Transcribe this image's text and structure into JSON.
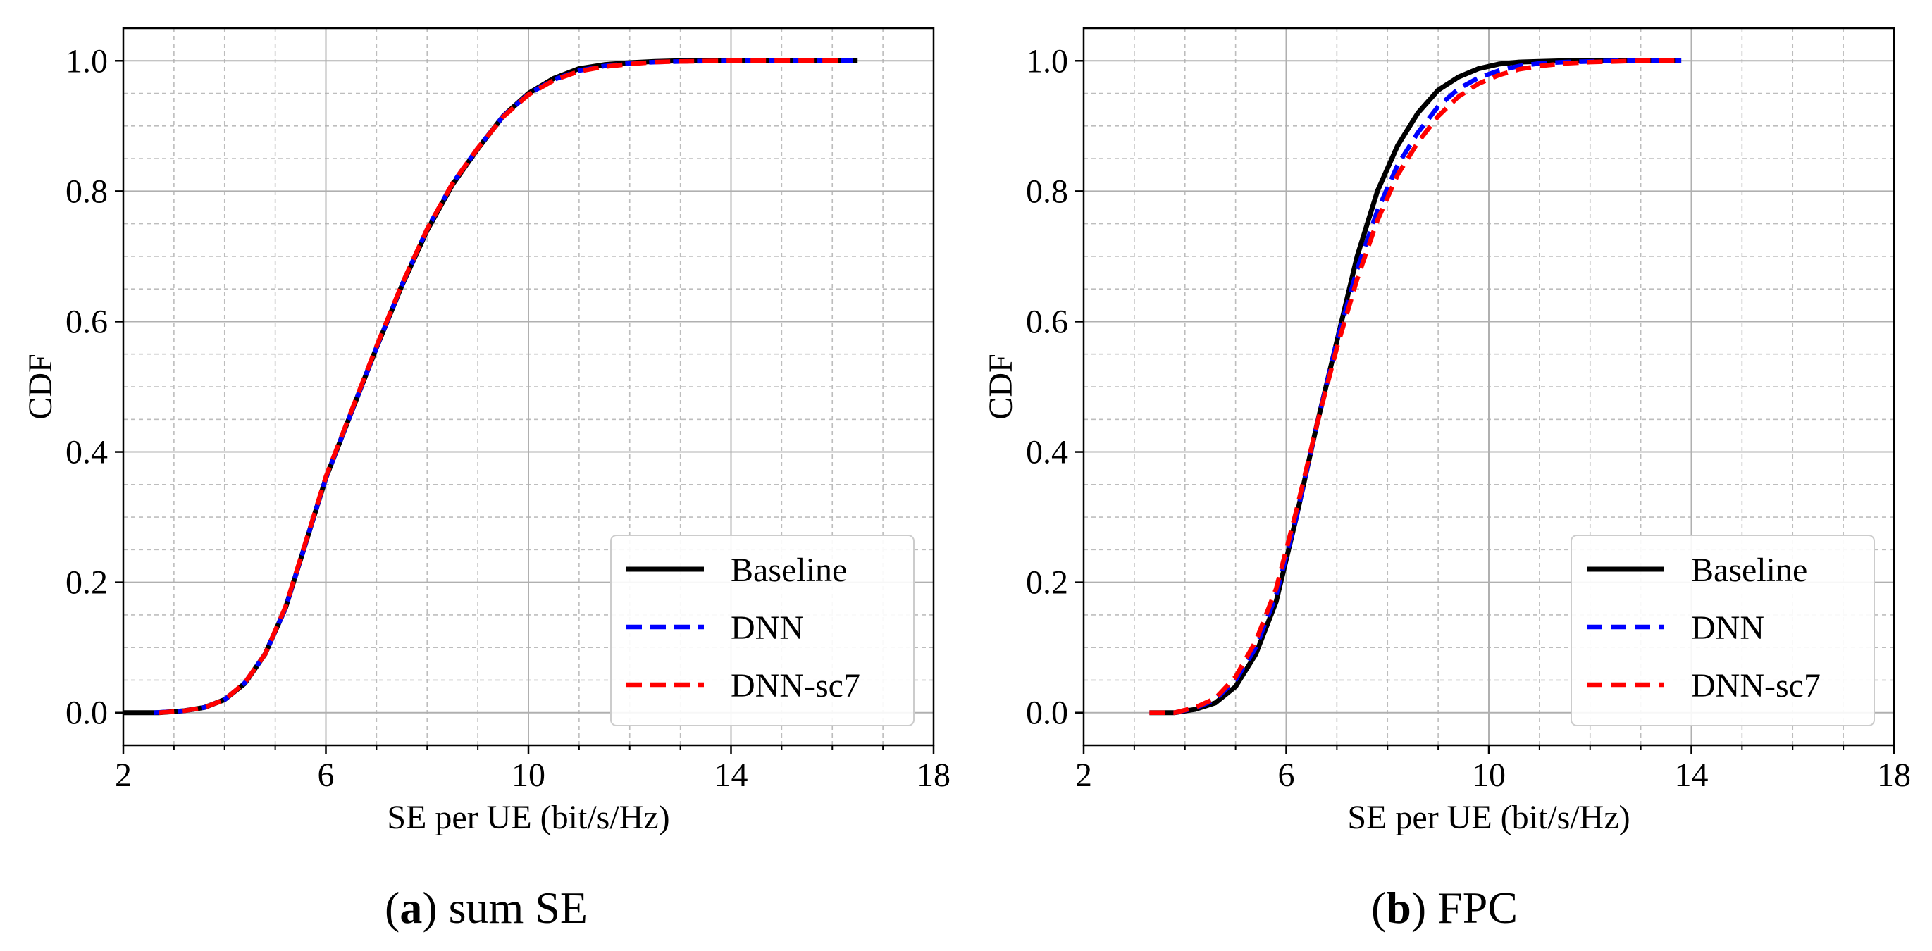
{
  "chart_data": [
    {
      "type": "line",
      "caption_letter": "a",
      "caption_text": "sum SE",
      "xlabel": "SE per UE (bit/s/Hz)",
      "ylabel": "CDF",
      "xlim": [
        2,
        18
      ],
      "ylim": [
        -0.05,
        1.05
      ],
      "xticks": [
        2,
        6,
        10,
        14,
        18
      ],
      "yticks": [
        0.0,
        0.2,
        0.4,
        0.6,
        0.8,
        1.0
      ],
      "xtick_labels": [
        "2",
        "6",
        "10",
        "14",
        "18"
      ],
      "ytick_labels": [
        "0.0",
        "0.2",
        "0.4",
        "0.6",
        "0.8",
        "1.0"
      ],
      "grid": true,
      "legend_position": "lower-right",
      "series": [
        {
          "name": "Baseline",
          "color": "#000000",
          "style": "solid",
          "x": [
            2.0,
            2.7,
            3.2,
            3.6,
            4.0,
            4.4,
            4.8,
            5.2,
            5.6,
            6.0,
            6.5,
            7.0,
            7.5,
            8.0,
            8.5,
            9.0,
            9.5,
            10.0,
            10.5,
            11.0,
            11.5,
            12.0,
            12.5,
            13.0,
            14.0,
            15.0,
            16.5
          ],
          "y": [
            0.0,
            0.0,
            0.003,
            0.008,
            0.02,
            0.045,
            0.09,
            0.16,
            0.26,
            0.36,
            0.46,
            0.56,
            0.655,
            0.74,
            0.81,
            0.865,
            0.915,
            0.95,
            0.973,
            0.988,
            0.994,
            0.997,
            0.999,
            1.0,
            1.0,
            1.0,
            1.0
          ]
        },
        {
          "name": "DNN",
          "color": "#0000ff",
          "style": "dashed",
          "x": [
            2.6,
            3.2,
            3.6,
            4.0,
            4.4,
            4.8,
            5.2,
            5.6,
            6.0,
            6.5,
            7.0,
            7.5,
            8.0,
            8.5,
            9.0,
            9.5,
            10.0,
            10.5,
            11.0,
            11.5,
            12.0,
            12.5,
            13.0,
            14.0,
            15.0,
            16.4
          ],
          "y": [
            0.0,
            0.003,
            0.008,
            0.02,
            0.046,
            0.09,
            0.16,
            0.26,
            0.36,
            0.46,
            0.56,
            0.656,
            0.742,
            0.812,
            0.866,
            0.915,
            0.949,
            0.971,
            0.985,
            0.992,
            0.996,
            0.998,
            0.999,
            1.0,
            1.0,
            1.0
          ]
        },
        {
          "name": "DNN-sc7",
          "color": "#ff0000",
          "style": "dashed",
          "x": [
            2.7,
            3.2,
            3.6,
            4.0,
            4.4,
            4.8,
            5.2,
            5.6,
            6.0,
            6.5,
            7.0,
            7.5,
            8.0,
            8.5,
            9.0,
            9.5,
            10.0,
            10.5,
            11.0,
            11.5,
            12.0,
            12.5,
            13.0,
            14.0,
            15.0,
            16.2
          ],
          "y": [
            0.0,
            0.003,
            0.008,
            0.02,
            0.046,
            0.09,
            0.162,
            0.262,
            0.362,
            0.462,
            0.562,
            0.657,
            0.742,
            0.812,
            0.866,
            0.914,
            0.948,
            0.97,
            0.984,
            0.991,
            0.995,
            0.998,
            0.999,
            1.0,
            1.0,
            1.0
          ]
        }
      ]
    },
    {
      "type": "line",
      "caption_letter": "b",
      "caption_text": "FPC",
      "xlabel": "SE per UE (bit/s/Hz)",
      "ylabel": "CDF",
      "xlim": [
        2,
        18
      ],
      "ylim": [
        -0.05,
        1.05
      ],
      "xticks": [
        2,
        6,
        10,
        14,
        18
      ],
      "yticks": [
        0.0,
        0.2,
        0.4,
        0.6,
        0.8,
        1.0
      ],
      "xtick_labels": [
        "2",
        "6",
        "10",
        "14",
        "18"
      ],
      "ytick_labels": [
        "0.0",
        "0.2",
        "0.4",
        "0.6",
        "0.8",
        "1.0"
      ],
      "grid": true,
      "legend_position": "lower-right",
      "series": [
        {
          "name": "Baseline",
          "color": "#000000",
          "style": "solid",
          "x": [
            3.3,
            3.8,
            4.2,
            4.6,
            5.0,
            5.4,
            5.8,
            6.2,
            6.6,
            7.0,
            7.4,
            7.8,
            8.2,
            8.6,
            9.0,
            9.4,
            9.8,
            10.2,
            10.6,
            11.0,
            11.5,
            12.0,
            12.5,
            13.0,
            13.8
          ],
          "y": [
            0.0,
            0.0,
            0.005,
            0.015,
            0.04,
            0.09,
            0.17,
            0.3,
            0.44,
            0.57,
            0.7,
            0.8,
            0.87,
            0.92,
            0.955,
            0.975,
            0.988,
            0.995,
            0.998,
            0.999,
            1.0,
            1.0,
            1.0,
            1.0,
            1.0
          ]
        },
        {
          "name": "DNN",
          "color": "#0000ff",
          "style": "dashed",
          "x": [
            3.3,
            3.8,
            4.2,
            4.6,
            5.0,
            5.4,
            5.8,
            6.2,
            6.6,
            7.0,
            7.4,
            7.8,
            8.2,
            8.6,
            9.0,
            9.4,
            9.8,
            10.2,
            10.6,
            11.0,
            11.5,
            12.0,
            12.5,
            13.0,
            13.8
          ],
          "y": [
            0.0,
            0.0,
            0.007,
            0.02,
            0.05,
            0.1,
            0.18,
            0.3,
            0.44,
            0.57,
            0.68,
            0.77,
            0.84,
            0.89,
            0.93,
            0.957,
            0.974,
            0.985,
            0.992,
            0.996,
            0.998,
            0.999,
            1.0,
            1.0,
            1.0
          ]
        },
        {
          "name": "DNN-sc7",
          "color": "#ff0000",
          "style": "dashed",
          "x": [
            3.3,
            3.8,
            4.2,
            4.6,
            5.0,
            5.4,
            5.8,
            6.2,
            6.6,
            7.0,
            7.4,
            7.8,
            8.2,
            8.6,
            9.0,
            9.4,
            9.8,
            10.2,
            10.6,
            11.0,
            11.5,
            12.0,
            12.5,
            13.0,
            13.8
          ],
          "y": [
            0.0,
            0.0,
            0.008,
            0.022,
            0.055,
            0.11,
            0.19,
            0.31,
            0.44,
            0.56,
            0.665,
            0.755,
            0.825,
            0.875,
            0.915,
            0.945,
            0.965,
            0.978,
            0.987,
            0.992,
            0.996,
            0.998,
            0.999,
            1.0,
            1.0
          ]
        }
      ]
    }
  ]
}
